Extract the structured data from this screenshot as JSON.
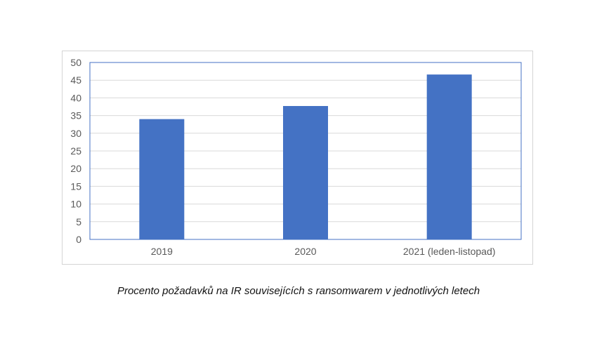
{
  "chart_data": {
    "type": "bar",
    "categories": [
      "2019",
      "2020",
      "2021 (leden-listopad)"
    ],
    "values": [
      34,
      37.7,
      46.6
    ],
    "title": "",
    "xlabel": "",
    "ylabel": "",
    "ylim": [
      0,
      50
    ],
    "yticks": [
      "0",
      "5",
      "10",
      "15",
      "20",
      "25",
      "30",
      "35",
      "40",
      "45",
      "50"
    ],
    "grid": true,
    "legend": "none",
    "colors": {
      "bar": "#4472c4",
      "grid": "#d9d9d9",
      "plot_border": "#4472c4",
      "tick_text": "#595959"
    }
  },
  "caption": "Procento požadavků na IR souvisejících s ransomwarem v jednotlivých letech"
}
